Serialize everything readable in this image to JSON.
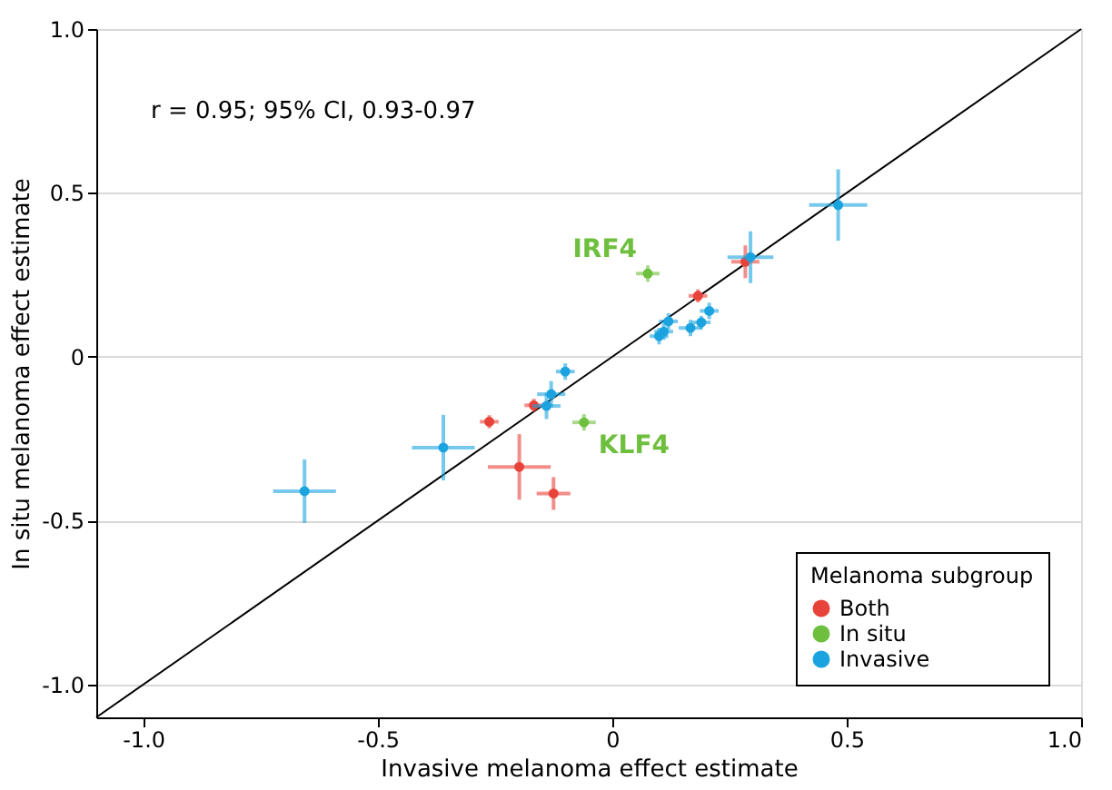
{
  "chart_data": {
    "type": "scatter",
    "xlabel": "Invasive melanoma effect estimate",
    "ylabel": "In situ melanoma effect estimate",
    "legend_title": "Melanoma subgroup",
    "legend": "bottom right",
    "grid": "y",
    "marker": "circle",
    "xlim": [
      -1.1,
      1.0
    ],
    "ylim": [
      -1.1,
      1.0
    ],
    "xticks": [
      {
        "value": -1.0,
        "label": "-1.0"
      },
      -0.5,
      0,
      0.5,
      {
        "value": 1.0,
        "label": "1.0"
      }
    ],
    "yticks": [
      {
        "value": -1.0,
        "label": "-1.0"
      },
      -0.5,
      0,
      0.5,
      {
        "value": 1.0,
        "label": "1.0"
      }
    ],
    "annotations": [
      "r = 0.95; 95% CI, 0.93-0.97",
      {
        "text": "IRF4",
        "x": 0.076,
        "y": 0.254
      },
      {
        "text": "KLF4",
        "x": -0.06,
        "y": -0.2
      }
    ],
    "series": [
      {
        "type": "line",
        "color": "#000000",
        "marker": "none",
        "line_style": "solid",
        "x": [
          -1.1,
          1.0
        ],
        "values": [
          -1.1,
          1.0
        ]
      },
      {
        "name": "Both",
        "color": "#e8433a",
        "x": [
          -0.262,
          -0.167,
          -0.198,
          -0.125,
          0.183,
          0.284
        ],
        "values": [
          -0.198,
          -0.148,
          -0.336,
          -0.417,
          0.186,
          0.29
        ],
        "xerrors": [
          0.02,
          0.02,
          0.067,
          0.036,
          0.02,
          0.03
        ],
        "errors": [
          0.02,
          0.02,
          0.1,
          0.05,
          0.02,
          0.05
        ]
      },
      {
        "name": "In situ",
        "color": "#6fbf3f",
        "x": [
          0.076,
          -0.06
        ],
        "values": [
          0.254,
          -0.2
        ],
        "xerrors": [
          0.025,
          0.025
        ],
        "errors": [
          0.025,
          0.025
        ]
      },
      {
        "name": "Invasive",
        "color": "#1ba3e0",
        "x": [
          -0.656,
          -0.36,
          -0.13,
          -0.14,
          -0.1,
          0.1,
          0.11,
          0.12,
          0.167,
          0.19,
          0.207,
          0.295,
          0.482
        ],
        "values": [
          -0.41,
          -0.277,
          -0.114,
          -0.15,
          -0.045,
          0.063,
          0.077,
          0.108,
          0.088,
          0.105,
          0.14,
          0.304,
          0.463
        ],
        "xerrors": [
          0.067,
          0.067,
          0.03,
          0.03,
          0.02,
          0.02,
          0.02,
          0.02,
          0.025,
          0.02,
          0.02,
          0.049,
          0.062
        ],
        "errors": [
          0.097,
          0.1,
          0.04,
          0.04,
          0.025,
          0.025,
          0.025,
          0.025,
          0.025,
          0.02,
          0.025,
          0.079,
          0.109
        ]
      }
    ]
  }
}
